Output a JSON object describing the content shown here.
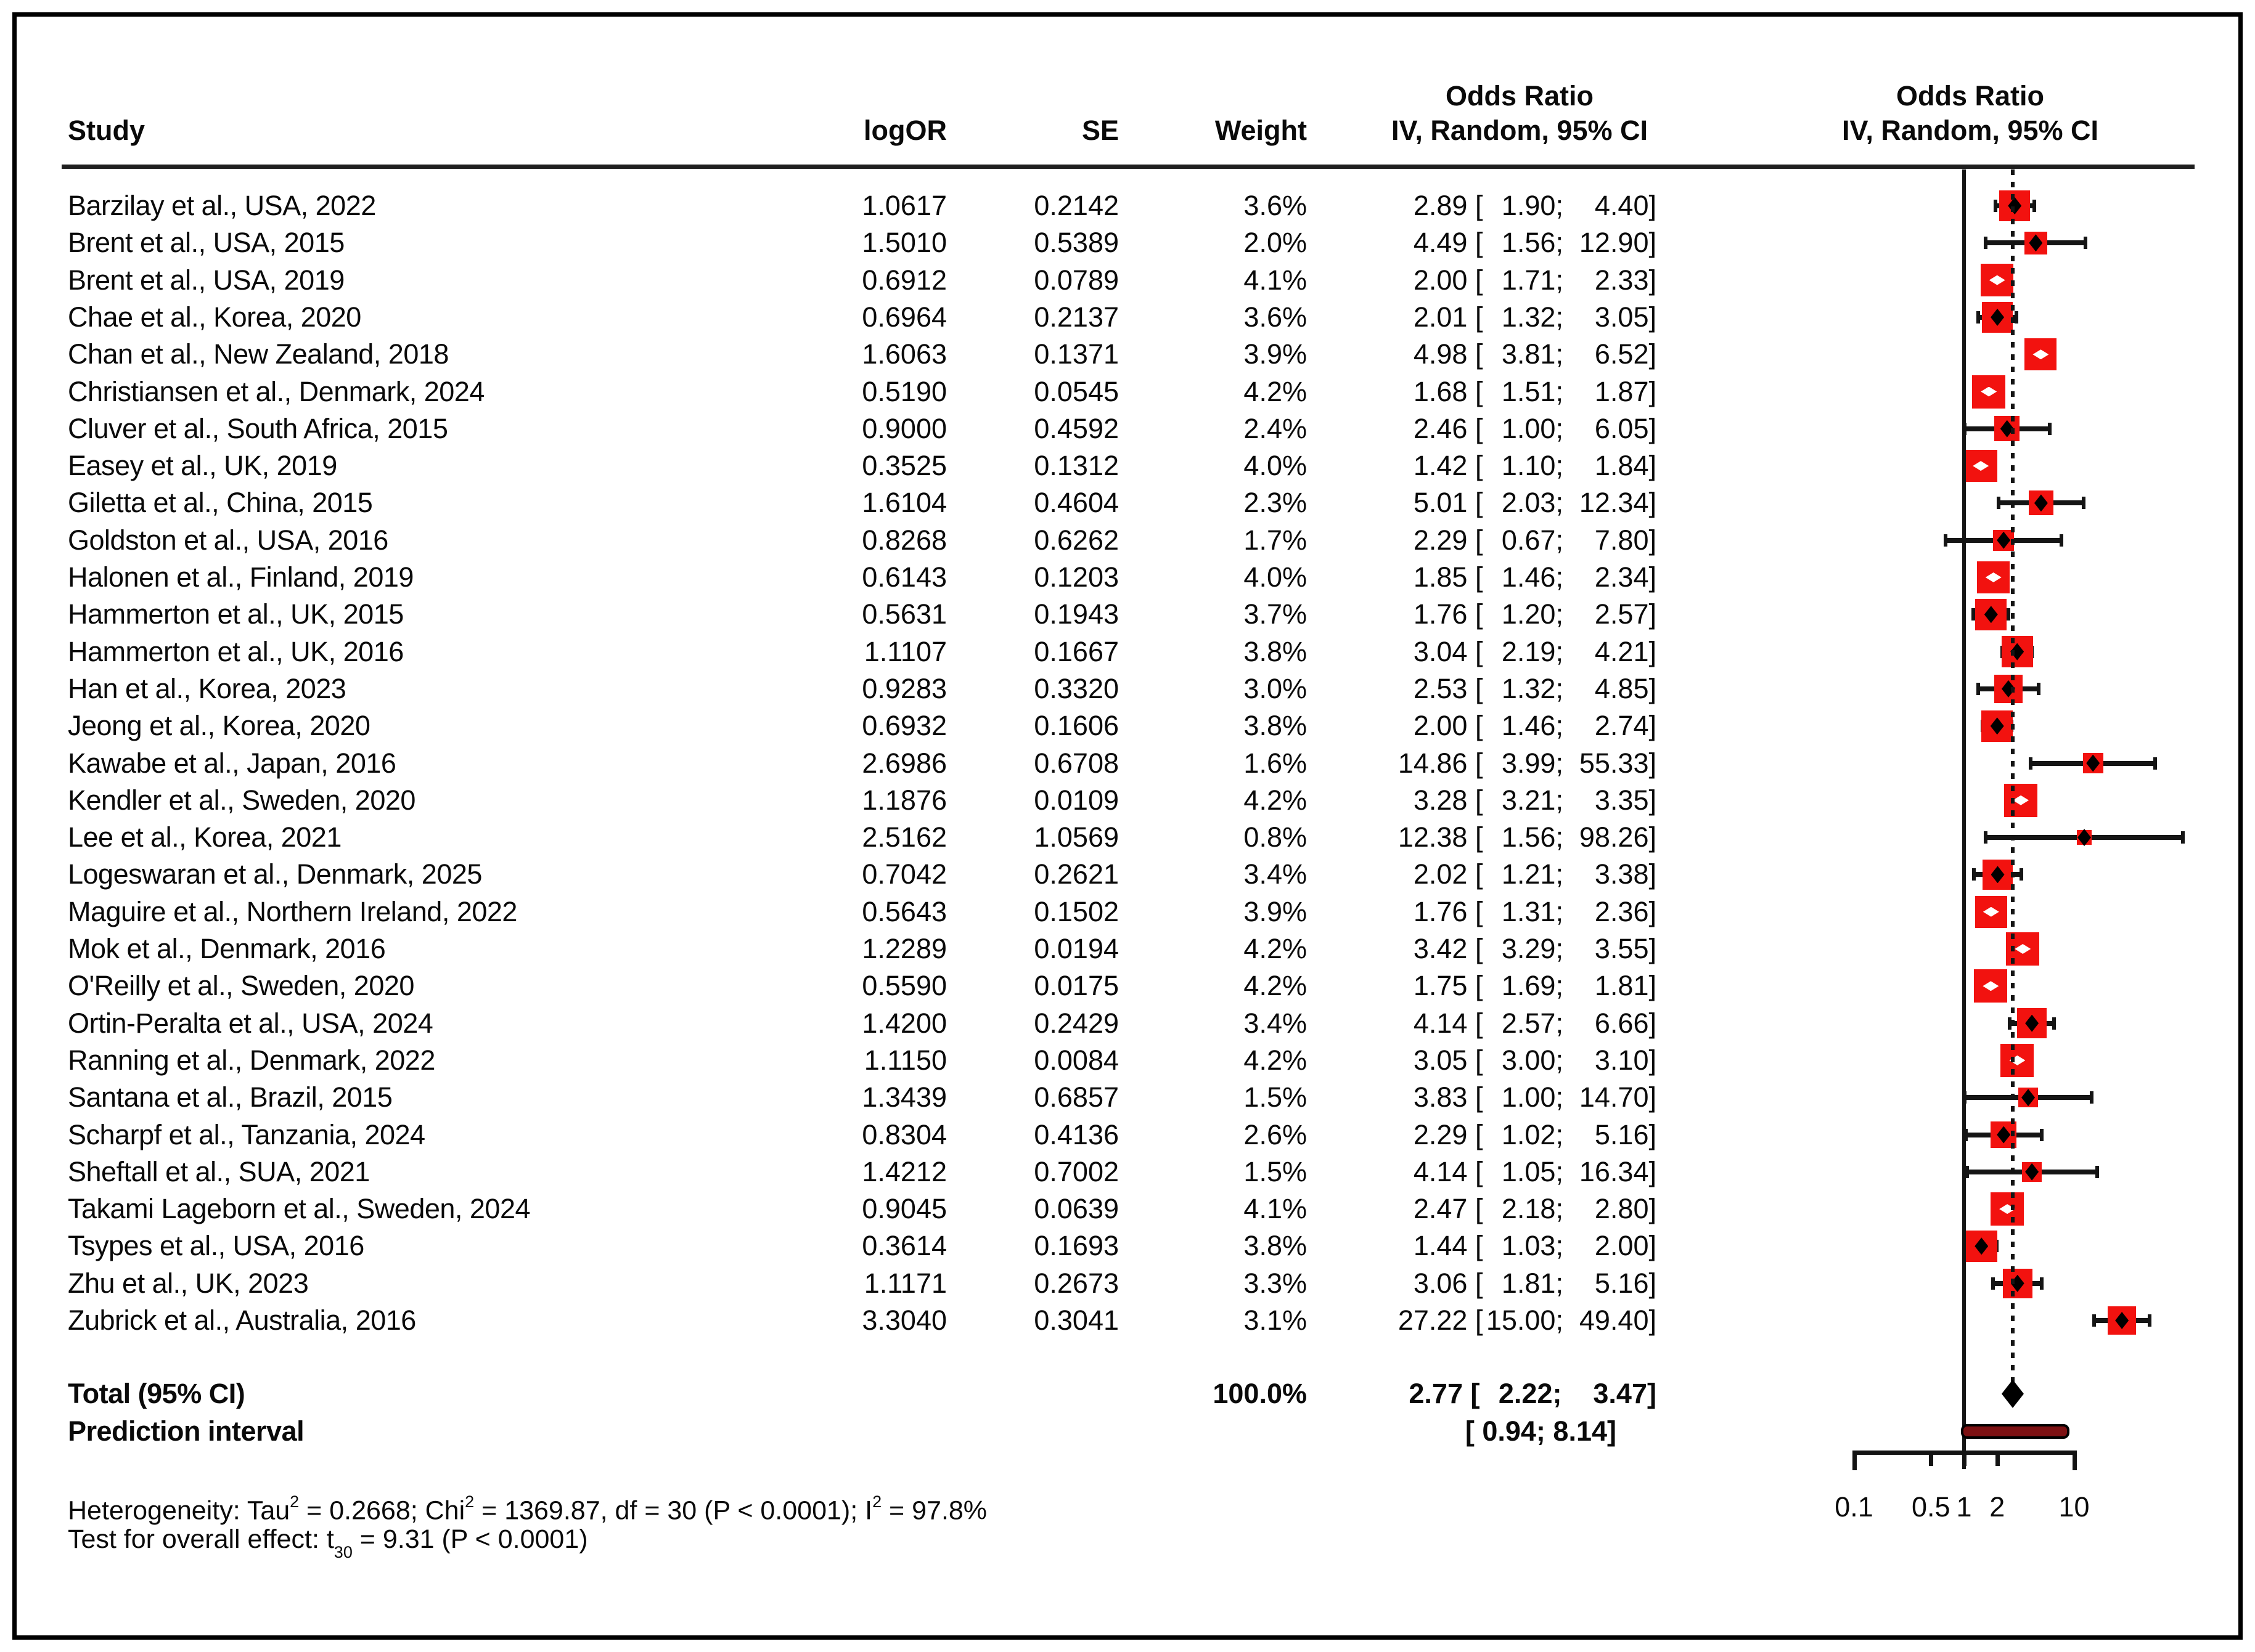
{
  "header": {
    "study": "Study",
    "logor": "logOR",
    "se": "SE",
    "weight": "Weight",
    "or_col_line1": "Odds Ratio",
    "or_col_line2": "IV, Random, 95% CI",
    "plot_col_line1": "Odds Ratio",
    "plot_col_line2": "IV, Random, 95% CI"
  },
  "chart_data": {
    "type": "forest",
    "x_scale": "log10",
    "x_axis": {
      "tick_labels": [
        "0.1",
        "0.5",
        "1",
        "2",
        "10"
      ],
      "tick_values": [
        0.1,
        0.5,
        1,
        2,
        10
      ],
      "range": [
        0.1,
        10
      ]
    },
    "reference_value": 1,
    "pooled_value": 2.77,
    "studies": [
      {
        "label": "Barzilay et al., USA, 2022",
        "logor": "1.0617",
        "se": "0.2142",
        "weight": "3.6%",
        "or": "2.89",
        "lo": "1.90",
        "hi": "4.40"
      },
      {
        "label": "Brent et al., USA, 2015",
        "logor": "1.5010",
        "se": "0.5389",
        "weight": "2.0%",
        "or": "4.49",
        "lo": "1.56",
        "hi": "12.90"
      },
      {
        "label": "Brent et al., USA, 2019",
        "logor": "0.6912",
        "se": "0.0789",
        "weight": "4.1%",
        "or": "2.00",
        "lo": "1.71",
        "hi": "2.33"
      },
      {
        "label": "Chae et al., Korea, 2020",
        "logor": "0.6964",
        "se": "0.2137",
        "weight": "3.6%",
        "or": "2.01",
        "lo": "1.32",
        "hi": "3.05"
      },
      {
        "label": "Chan et al., New Zealand, 2018",
        "logor": "1.6063",
        "se": "0.1371",
        "weight": "3.9%",
        "or": "4.98",
        "lo": "3.81",
        "hi": "6.52"
      },
      {
        "label": "Christiansen et al., Denmark, 2024",
        "logor": "0.5190",
        "se": "0.0545",
        "weight": "4.2%",
        "or": "1.68",
        "lo": "1.51",
        "hi": "1.87"
      },
      {
        "label": "Cluver et al., South Africa, 2015",
        "logor": "0.9000",
        "se": "0.4592",
        "weight": "2.4%",
        "or": "2.46",
        "lo": "1.00",
        "hi": "6.05"
      },
      {
        "label": "Easey et al., UK, 2019",
        "logor": "0.3525",
        "se": "0.1312",
        "weight": "4.0%",
        "or": "1.42",
        "lo": "1.10",
        "hi": "1.84"
      },
      {
        "label": "Giletta et al., China, 2015",
        "logor": "1.6104",
        "se": "0.4604",
        "weight": "2.3%",
        "or": "5.01",
        "lo": "2.03",
        "hi": "12.34"
      },
      {
        "label": "Goldston et al., USA, 2016",
        "logor": "0.8268",
        "se": "0.6262",
        "weight": "1.7%",
        "or": "2.29",
        "lo": "0.67",
        "hi": "7.80"
      },
      {
        "label": "Halonen et al., Finland, 2019",
        "logor": "0.6143",
        "se": "0.1203",
        "weight": "4.0%",
        "or": "1.85",
        "lo": "1.46",
        "hi": "2.34"
      },
      {
        "label": "Hammerton et al., UK, 2015",
        "logor": "0.5631",
        "se": "0.1943",
        "weight": "3.7%",
        "or": "1.76",
        "lo": "1.20",
        "hi": "2.57"
      },
      {
        "label": "Hammerton et al., UK, 2016",
        "logor": "1.1107",
        "se": "0.1667",
        "weight": "3.8%",
        "or": "3.04",
        "lo": "2.19",
        "hi": "4.21"
      },
      {
        "label": "Han et al., Korea, 2023",
        "logor": "0.9283",
        "se": "0.3320",
        "weight": "3.0%",
        "or": "2.53",
        "lo": "1.32",
        "hi": "4.85"
      },
      {
        "label": "Jeong et al., Korea, 2020",
        "logor": "0.6932",
        "se": "0.1606",
        "weight": "3.8%",
        "or": "2.00",
        "lo": "1.46",
        "hi": "2.74"
      },
      {
        "label": "Kawabe et al., Japan, 2016",
        "logor": "2.6986",
        "se": "0.6708",
        "weight": "1.6%",
        "or": "14.86",
        "lo": "3.99",
        "hi": "55.33"
      },
      {
        "label": "Kendler et al., Sweden, 2020",
        "logor": "1.1876",
        "se": "0.0109",
        "weight": "4.2%",
        "or": "3.28",
        "lo": "3.21",
        "hi": "3.35"
      },
      {
        "label": "Lee et al., Korea, 2021",
        "logor": "2.5162",
        "se": "1.0569",
        "weight": "0.8%",
        "or": "12.38",
        "lo": "1.56",
        "hi": "98.26"
      },
      {
        "label": "Logeswaran et al., Denmark, 2025",
        "logor": "0.7042",
        "se": "0.2621",
        "weight": "3.4%",
        "or": "2.02",
        "lo": "1.21",
        "hi": "3.38"
      },
      {
        "label": "Maguire et al., Northern Ireland, 2022",
        "logor": "0.5643",
        "se": "0.1502",
        "weight": "3.9%",
        "or": "1.76",
        "lo": "1.31",
        "hi": "2.36"
      },
      {
        "label": "Mok et al., Denmark, 2016",
        "logor": "1.2289",
        "se": "0.0194",
        "weight": "4.2%",
        "or": "3.42",
        "lo": "3.29",
        "hi": "3.55"
      },
      {
        "label": "O'Reilly et al., Sweden, 2020",
        "logor": "0.5590",
        "se": "0.0175",
        "weight": "4.2%",
        "or": "1.75",
        "lo": "1.69",
        "hi": "1.81"
      },
      {
        "label": "Ortin-Peralta et al., USA, 2024",
        "logor": "1.4200",
        "se": "0.2429",
        "weight": "3.4%",
        "or": "4.14",
        "lo": "2.57",
        "hi": "6.66"
      },
      {
        "label": "Ranning et al., Denmark, 2022",
        "logor": "1.1150",
        "se": "0.0084",
        "weight": "4.2%",
        "or": "3.05",
        "lo": "3.00",
        "hi": "3.10"
      },
      {
        "label": "Santana et al., Brazil, 2015",
        "logor": "1.3439",
        "se": "0.6857",
        "weight": "1.5%",
        "or": "3.83",
        "lo": "1.00",
        "hi": "14.70"
      },
      {
        "label": "Scharpf et al., Tanzania, 2024",
        "logor": "0.8304",
        "se": "0.4136",
        "weight": "2.6%",
        "or": "2.29",
        "lo": "1.02",
        "hi": "5.16"
      },
      {
        "label": "Sheftall et al., SUA, 2021",
        "logor": "1.4212",
        "se": "0.7002",
        "weight": "1.5%",
        "or": "4.14",
        "lo": "1.05",
        "hi": "16.34"
      },
      {
        "label": "Takami Lageborn et al., Sweden, 2024",
        "logor": "0.9045",
        "se": "0.0639",
        "weight": "4.1%",
        "or": "2.47",
        "lo": "2.18",
        "hi": "2.80"
      },
      {
        "label": "Tsypes et al., USA, 2016",
        "logor": "0.3614",
        "se": "0.1693",
        "weight": "3.8%",
        "or": "1.44",
        "lo": "1.03",
        "hi": "2.00"
      },
      {
        "label": "Zhu et al., UK, 2023",
        "logor": "1.1171",
        "se": "0.2673",
        "weight": "3.3%",
        "or": "3.06",
        "lo": "1.81",
        "hi": "5.16"
      },
      {
        "label": "Zubrick et al., Australia, 2016",
        "logor": "3.3040",
        "se": "0.3041",
        "weight": "3.1%",
        "or": "27.22",
        "lo": "15.00",
        "hi": "49.40"
      }
    ],
    "total": {
      "label": "Total (95% CI)",
      "weight": "100.0%",
      "or": "2.77",
      "lo": "2.22",
      "hi": "3.47"
    },
    "prediction": {
      "label": "Prediction interval",
      "ci_text": "[ 0.94;  8.14]",
      "lo": 0.94,
      "hi": 8.14
    }
  },
  "footer": {
    "heterogeneity": {
      "pre": "Heterogeneity: Tau",
      "sup1": "2",
      "mid1": " = 0.2668; Chi",
      "sup2": "2",
      "mid2": " = 1369.87, df = 30 (P < 0.0001); I",
      "sup3": "2",
      "end": " = 97.8%"
    },
    "overall": {
      "pre": "Test for overall effect: t",
      "sub": "30",
      "end": " = 9.31 (P < 0.0001)"
    }
  },
  "colors": {
    "square": "#f2120f",
    "ci_line": "#151515",
    "diamond": "#000000",
    "prediction_bar": "#7d1113",
    "marker_black": "#000000",
    "marker_white": "#ffffff"
  }
}
